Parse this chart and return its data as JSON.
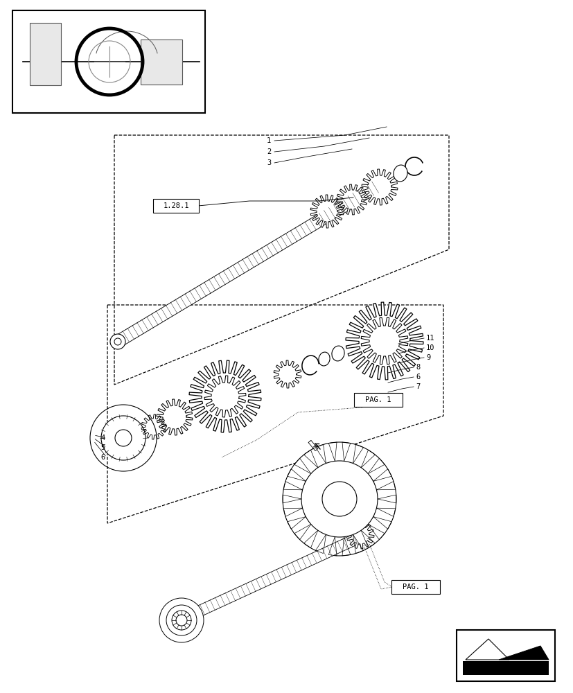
{
  "bg_color": "#ffffff",
  "lc": "#000000",
  "label_1281": "1.28.1",
  "label_pag1": "PAG. 1",
  "nums_upper": [
    "3",
    "2",
    "1"
  ],
  "nums_right": [
    "11",
    "10",
    "9",
    "8",
    "6",
    "7"
  ],
  "nums_lower": [
    "4",
    "5",
    "6"
  ]
}
